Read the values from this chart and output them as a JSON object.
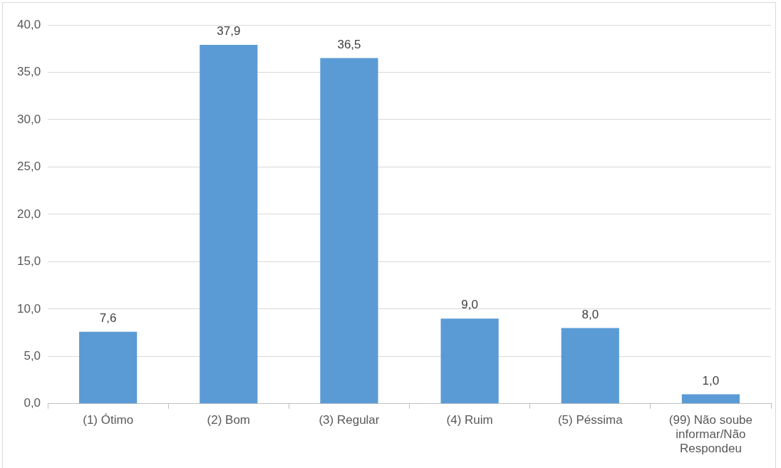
{
  "chart_data": {
    "type": "bar",
    "categories": [
      "(1) Ótimo",
      "(2) Bom",
      "(3) Regular",
      "(4) Ruim",
      "(5) Péssima",
      "(99) Não soube informar/Não Respondeu"
    ],
    "values": [
      7.6,
      37.9,
      36.5,
      9.0,
      8.0,
      1.0
    ],
    "value_labels": [
      "7,6",
      "37,9",
      "36,5",
      "9,0",
      "8,0",
      "1,0"
    ],
    "color": "#5b9bd5",
    "ylim": [
      0,
      40
    ],
    "yticks": [
      {
        "value": 0,
        "label": "0,0"
      },
      {
        "value": 5,
        "label": "5,0"
      },
      {
        "value": 10,
        "label": "10,0"
      },
      {
        "value": 15,
        "label": "15,0"
      },
      {
        "value": 20,
        "label": "20,0"
      },
      {
        "value": 25,
        "label": "25,0"
      },
      {
        "value": 30,
        "label": "30,0"
      },
      {
        "value": 35,
        "label": "35,0"
      },
      {
        "value": 40,
        "label": "40,0"
      }
    ],
    "grid": "y"
  }
}
